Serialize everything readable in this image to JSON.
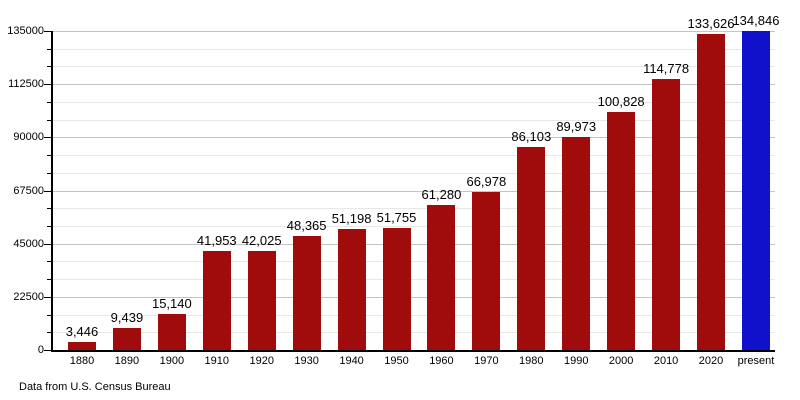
{
  "chart_data": {
    "type": "bar",
    "title": "",
    "xlabel": "",
    "ylabel": "",
    "categories": [
      "1880",
      "1890",
      "1900",
      "1910",
      "1920",
      "1930",
      "1940",
      "1950",
      "1960",
      "1970",
      "1980",
      "1990",
      "2000",
      "2010",
      "2020",
      "present"
    ],
    "values": [
      3446,
      9439,
      15140,
      41953,
      42025,
      48365,
      51198,
      51755,
      61280,
      66978,
      86103,
      89973,
      100828,
      114778,
      133626,
      134846
    ],
    "value_labels": [
      "3,446",
      "9,439",
      "15,140",
      "41,953",
      "42,025",
      "48,365",
      "51,198",
      "51,755",
      "61,280",
      "66,978",
      "86,103",
      "89,973",
      "100,828",
      "114,778",
      "133,626",
      "134,846"
    ],
    "highlight_category": "present",
    "ylim": [
      0,
      135000
    ],
    "ytick_interval": 22500,
    "minor_tick_interval": 7500,
    "ytick_labels": [
      "0",
      "22500",
      "45000",
      "67500",
      "90000",
      "112500",
      "135000"
    ],
    "grid": "on",
    "legend": "none"
  },
  "footer": {
    "source_note": "Data from U.S. Census Bureau"
  },
  "colors": {
    "background": "#FFFFFF",
    "bar_default": "#A00C0C",
    "bar_highlight": "#1111CC",
    "axis": "#000000",
    "grid_major": "#C4C4C4",
    "grid_minor": "#E7E7E7",
    "text": "#000000"
  }
}
